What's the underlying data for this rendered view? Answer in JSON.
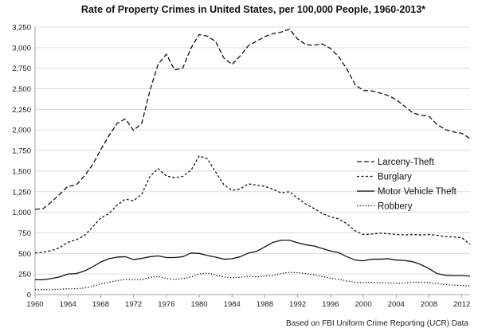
{
  "chart_data": {
    "type": "line",
    "title": "Rate of Property Crimes in United States, per 100,000 People, 1960-2013*",
    "footnote": "Based on FBI Uniform Crime Reporting (UCR) Data",
    "xlabel": "",
    "ylabel": "",
    "xlim": [
      1960,
      2013
    ],
    "ylim": [
      0,
      3250
    ],
    "grid": true,
    "legend_position": "right",
    "x_ticks": [
      "1960",
      "1964",
      "1968",
      "1972",
      "1976",
      "1980",
      "1984",
      "1988",
      "1992",
      "1996",
      "2000",
      "2004",
      "2008",
      "2012"
    ],
    "y_ticks": [
      "0",
      "250",
      "500",
      "750",
      "1,000",
      "1,250",
      "1,500",
      "1,750",
      "2,000",
      "2,250",
      "2,500",
      "2,750",
      "3,000",
      "3,250"
    ],
    "x": [
      1960,
      1961,
      1962,
      1963,
      1964,
      1965,
      1966,
      1967,
      1968,
      1969,
      1970,
      1971,
      1972,
      1973,
      1974,
      1975,
      1976,
      1977,
      1978,
      1979,
      1980,
      1981,
      1982,
      1983,
      1984,
      1985,
      1986,
      1987,
      1988,
      1989,
      1990,
      1991,
      1992,
      1993,
      1994,
      1995,
      1996,
      1997,
      1998,
      1999,
      2000,
      2001,
      2002,
      2003,
      2004,
      2005,
      2006,
      2007,
      2008,
      2009,
      2010,
      2011,
      2012,
      2013
    ],
    "series": [
      {
        "name": "Larceny-Theft",
        "dash": "6,3",
        "values": [
          1035,
          1045,
          1125,
          1220,
          1315,
          1330,
          1440,
          1575,
          1760,
          1930,
          2080,
          2135,
          1995,
          2080,
          2480,
          2800,
          2920,
          2730,
          2750,
          2995,
          3160,
          3140,
          3075,
          2875,
          2795,
          2900,
          3025,
          3080,
          3135,
          3170,
          3190,
          3225,
          3105,
          3035,
          3030,
          3045,
          2990,
          2890,
          2740,
          2550,
          2480,
          2475,
          2450,
          2420,
          2370,
          2290,
          2210,
          2180,
          2165,
          2065,
          2005,
          1975,
          1960,
          1895
        ]
      },
      {
        "name": "Burglary",
        "dash": "3,2.5",
        "values": [
          505,
          515,
          535,
          570,
          635,
          665,
          715,
          820,
          930,
          985,
          1085,
          1160,
          1140,
          1220,
          1435,
          1530,
          1440,
          1420,
          1435,
          1510,
          1685,
          1650,
          1490,
          1335,
          1265,
          1285,
          1345,
          1330,
          1315,
          1280,
          1235,
          1250,
          1170,
          1100,
          1045,
          985,
          945,
          920,
          860,
          775,
          730,
          735,
          745,
          740,
          730,
          725,
          730,
          725,
          730,
          720,
          705,
          700,
          690,
          610
        ]
      },
      {
        "name": "Motor Vehicle Theft",
        "dash": "",
        "values": [
          180,
          180,
          195,
          215,
          250,
          255,
          285,
          335,
          395,
          435,
          455,
          460,
          425,
          440,
          460,
          470,
          450,
          450,
          460,
          505,
          500,
          475,
          455,
          430,
          435,
          460,
          505,
          525,
          580,
          635,
          660,
          660,
          630,
          605,
          590,
          560,
          530,
          510,
          460,
          420,
          410,
          430,
          430,
          435,
          420,
          415,
          400,
          365,
          315,
          255,
          235,
          230,
          230,
          225
        ]
      },
      {
        "name": "Robbery",
        "dash": "1.3,2.2",
        "values": [
          60,
          60,
          60,
          65,
          70,
          70,
          80,
          100,
          130,
          150,
          170,
          185,
          180,
          180,
          210,
          220,
          195,
          185,
          195,
          215,
          250,
          260,
          240,
          215,
          205,
          210,
          225,
          215,
          225,
          235,
          255,
          270,
          265,
          255,
          240,
          220,
          200,
          185,
          165,
          150,
          145,
          150,
          145,
          140,
          135,
          140,
          150,
          150,
          145,
          135,
          120,
          115,
          110,
          105
        ]
      }
    ]
  }
}
